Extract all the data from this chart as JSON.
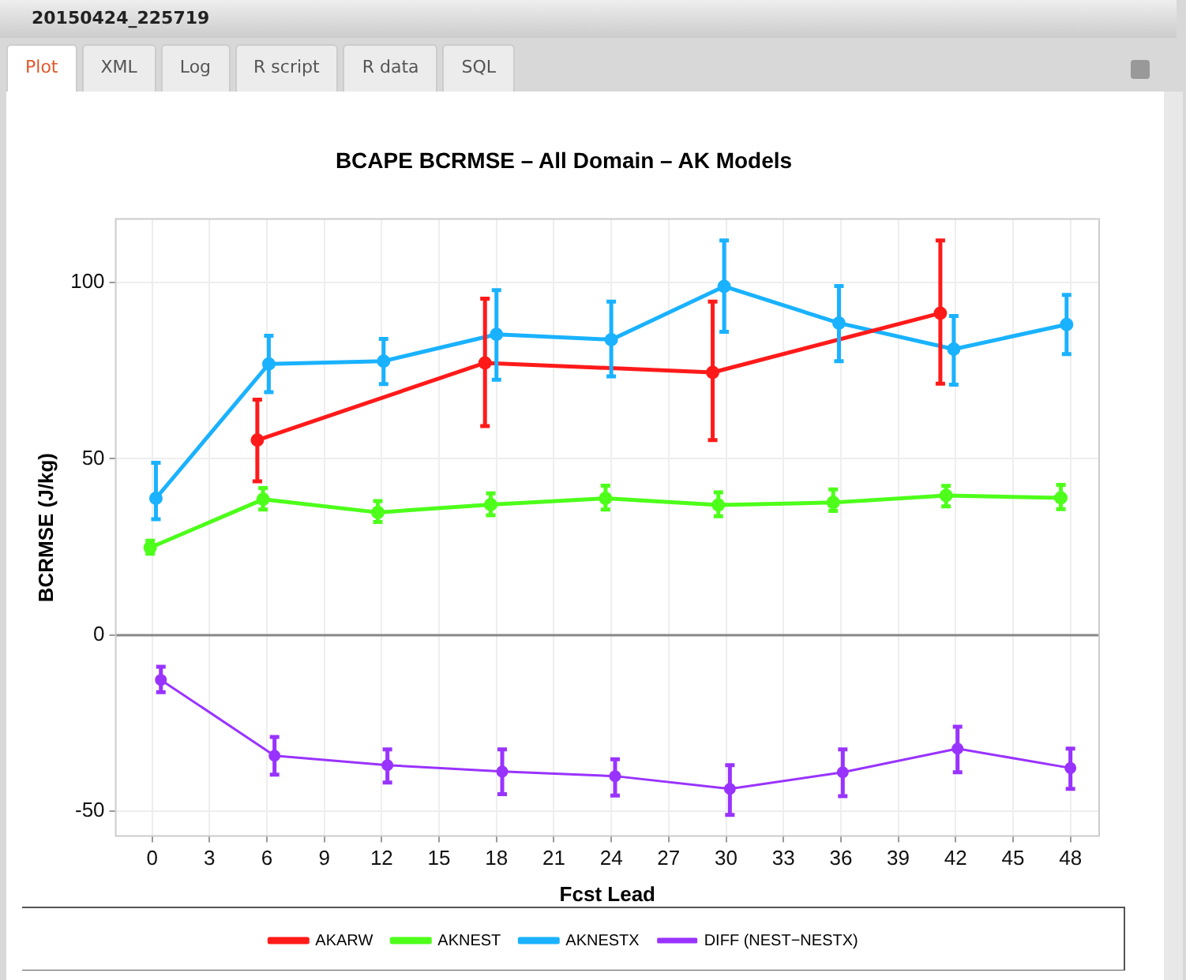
{
  "chart_data": {
    "type": "line",
    "title": "BCAPE BCRMSE – All Domain – AK Models",
    "xlabel": "Fcst Lead",
    "ylabel": "BCRMSE (J/kg)",
    "annotations": [
      "20150424_225719",
      "Plot",
      "XML",
      "Log",
      "R script",
      "R data",
      "SQL"
    ],
    "xlim": [
      -1.9,
      49.5
    ],
    "xticks": [
      0,
      3,
      6,
      9,
      12,
      15,
      18,
      21,
      24,
      27,
      30,
      33,
      36,
      39,
      42,
      45,
      48
    ],
    "ylim": [
      -57,
      118
    ],
    "yticks": [
      -50,
      0,
      50,
      100
    ],
    "grid": true,
    "legend": "bottom",
    "marker": "circle",
    "line_style": "solid",
    "ref_lines": [
      {
        "axis": "y",
        "value": 0,
        "color": "#888888"
      }
    ],
    "series": [
      {
        "name": "AKARW",
        "color": "#ff1a1a",
        "x": [
          5.5,
          17.4,
          29.3,
          41.2
        ],
        "values": [
          55.3,
          77.2,
          74.5,
          91.3
        ],
        "errors": [
          [
            43.6,
            66.8
          ],
          [
            59.3,
            95.4
          ],
          [
            55.3,
            94.6
          ],
          [
            71.3,
            111.9
          ]
        ]
      },
      {
        "name": "AKNEST",
        "color": "#4dff1a",
        "x": [
          -0.1,
          5.8,
          11.8,
          17.7,
          23.7,
          29.6,
          35.6,
          41.5,
          47.5
        ],
        "values": [
          24.8,
          38.5,
          34.8,
          37.0,
          38.8,
          36.9,
          37.6,
          39.6,
          38.9
        ],
        "errors": [
          [
            23.1,
            26.8
          ],
          [
            35.6,
            41.7
          ],
          [
            32.1,
            38.0
          ],
          [
            34.0,
            40.2
          ],
          [
            35.6,
            42.4
          ],
          [
            33.7,
            40.5
          ],
          [
            35.2,
            41.3
          ],
          [
            36.5,
            42.3
          ],
          [
            35.7,
            42.6
          ]
        ]
      },
      {
        "name": "AKNESTX",
        "color": "#1ab2ff",
        "x": [
          0.2,
          6.1,
          12.1,
          18.0,
          24.0,
          29.9,
          35.9,
          41.9,
          47.8
        ],
        "values": [
          38.8,
          76.9,
          77.7,
          85.3,
          83.8,
          98.9,
          88.5,
          81.1,
          88.1
        ],
        "errors": [
          [
            32.9,
            48.9
          ],
          [
            68.9,
            84.9
          ],
          [
            71.2,
            84.0
          ],
          [
            72.4,
            97.8
          ],
          [
            73.4,
            94.6
          ],
          [
            86.0,
            111.9
          ],
          [
            77.7,
            99.0
          ],
          [
            71.0,
            90.5
          ],
          [
            79.7,
            96.5
          ]
        ]
      },
      {
        "name": "DIFF (NEST−NESTX)",
        "color": "#9933ff",
        "x": [
          0.46,
          6.4,
          12.3,
          18.3,
          24.2,
          30.2,
          36.1,
          42.1,
          48.0
        ],
        "values": [
          -12.7,
          -34.2,
          -36.9,
          -38.7,
          -40.0,
          -43.6,
          -38.9,
          -32.2,
          -37.7
        ],
        "errors": [
          [
            -16.2,
            -9.0
          ],
          [
            -39.6,
            -28.9
          ],
          [
            -41.8,
            -32.4
          ],
          [
            -45.1,
            -32.4
          ],
          [
            -45.5,
            -35.2
          ],
          [
            -51.0,
            -36.9
          ],
          [
            -45.7,
            -32.4
          ],
          [
            -38.9,
            -26.0
          ],
          [
            -43.6,
            -32.2
          ]
        ]
      }
    ]
  }
}
